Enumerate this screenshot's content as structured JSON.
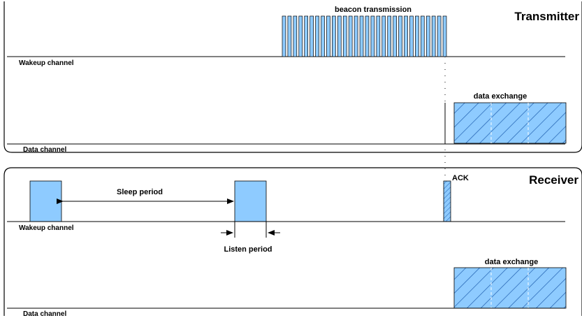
{
  "transmitter": {
    "title": "Transmitter",
    "wakeup_label": "Wakeup channel",
    "data_label": "Data channel",
    "beacon_label": "beacon transmission",
    "data_exchange_label": "data exchange",
    "beacon_pulse_count": 30
  },
  "receiver": {
    "title": "Receiver",
    "wakeup_label": "Wakeup channel",
    "data_label": "Data channel",
    "sleep_label": "Sleep period",
    "listen_label": "Listen period",
    "ack_label": "ACK",
    "data_exchange_label": "data exchange"
  },
  "colors": {
    "fill": "#8ecbff",
    "stroke": "#000000",
    "hatch": "#1f5fb0"
  }
}
